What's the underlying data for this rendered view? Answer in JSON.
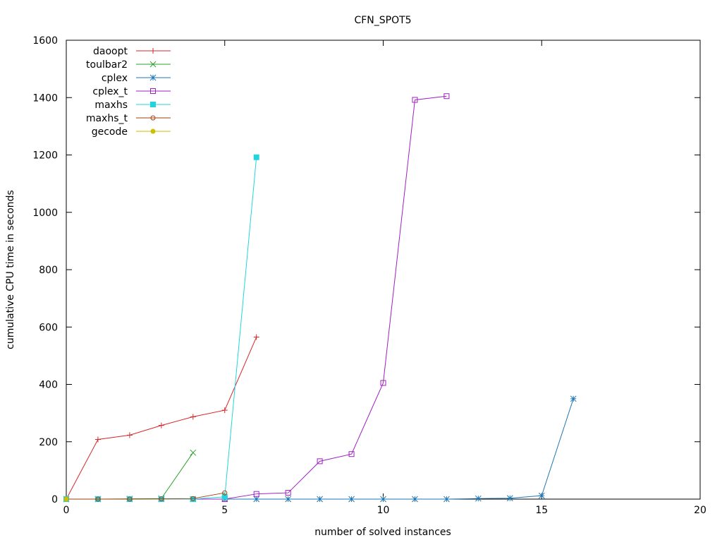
{
  "chart_data": {
    "type": "line",
    "title": "CFN_SPOT5",
    "xlabel": "number of solved instances",
    "ylabel": "cumulative CPU time in seconds",
    "xlim": [
      0,
      20
    ],
    "ylim": [
      0,
      1600
    ],
    "xticks": [
      0,
      5,
      10,
      15,
      20
    ],
    "yticks": [
      0,
      200,
      400,
      600,
      800,
      1000,
      1200,
      1400,
      1600
    ],
    "grid": false,
    "legend_position": "top-left",
    "series": [
      {
        "name": "daoopt",
        "color": "#d62728",
        "marker": "plus",
        "x": [
          0,
          1,
          2,
          3,
          4,
          5,
          6
        ],
        "y": [
          0,
          208,
          223,
          257,
          287,
          310,
          565
        ]
      },
      {
        "name": "toulbar2",
        "color": "#2ca02c",
        "marker": "cross",
        "x": [
          0,
          1,
          2,
          3,
          4
        ],
        "y": [
          0,
          0,
          1,
          2,
          162
        ]
      },
      {
        "name": "cplex",
        "color": "#1f77b4",
        "marker": "star",
        "x": [
          0,
          1,
          2,
          3,
          4,
          5,
          6,
          7,
          8,
          9,
          10,
          11,
          12,
          13,
          14,
          15,
          16
        ],
        "y": [
          0,
          0,
          0,
          0,
          0,
          0,
          0,
          0,
          0,
          0,
          0,
          0,
          0,
          2,
          3,
          12,
          350
        ]
      },
      {
        "name": "cplex_t",
        "color": "#a020c0",
        "marker": "open-square",
        "x": [
          0,
          1,
          2,
          3,
          4,
          5,
          6,
          7,
          8,
          9,
          10,
          11,
          12
        ],
        "y": [
          0,
          0,
          0,
          0,
          0,
          0,
          18,
          22,
          132,
          157,
          405,
          1392,
          1405
        ]
      },
      {
        "name": "maxhs",
        "color": "#22d5dd",
        "marker": "filled-square",
        "x": [
          0,
          1,
          2,
          3,
          4,
          5,
          6
        ],
        "y": [
          0,
          0,
          0,
          0,
          0,
          8,
          1192
        ]
      },
      {
        "name": "maxhs_t",
        "color": "#a0410d",
        "marker": "open-circle",
        "x": [
          0,
          1,
          2,
          3,
          4,
          5
        ],
        "y": [
          0,
          0,
          0,
          1,
          2,
          22
        ]
      },
      {
        "name": "gecode",
        "color": "#c8c000",
        "marker": "filled-circle",
        "x": [
          0
        ],
        "y": [
          0
        ]
      }
    ]
  }
}
